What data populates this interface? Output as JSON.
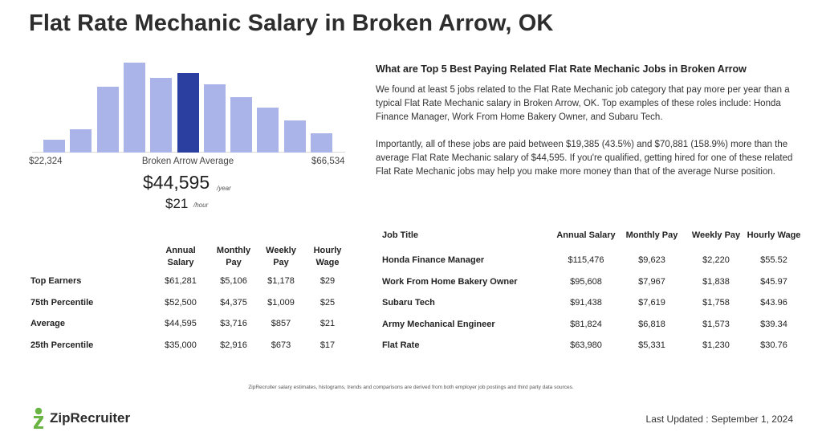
{
  "page": {
    "title": "Flat Rate Mechanic Salary in Broken Arrow, OK"
  },
  "colors": {
    "bar": "#aab4e8",
    "bar_highlight": "#2a3fa0",
    "logo_green": "#6ab443"
  },
  "histogram": {
    "min_label": "$22,324",
    "max_label": "$66,534",
    "avg_label": "Broken Arrow Average",
    "bars": [
      0.14,
      0.26,
      0.73,
      1.0,
      0.83,
      0.88,
      0.76,
      0.62,
      0.5,
      0.36,
      0.21
    ],
    "highlight_index": 5
  },
  "average": {
    "annual": "$44,595",
    "annual_unit": "/year",
    "hourly": "$21",
    "hourly_unit": "/hour"
  },
  "percentile_table": {
    "headers": [
      "",
      "Annual Salary",
      "Monthly Pay",
      "Weekly Pay",
      "Hourly Wage"
    ],
    "rows": [
      [
        "Top Earners",
        "$61,281",
        "$5,106",
        "$1,178",
        "$29"
      ],
      [
        "75th Percentile",
        "$52,500",
        "$4,375",
        "$1,009",
        "$25"
      ],
      [
        "Average",
        "$44,595",
        "$3,716",
        "$857",
        "$21"
      ],
      [
        "25th Percentile",
        "$35,000",
        "$2,916",
        "$673",
        "$17"
      ]
    ]
  },
  "related": {
    "heading": "What are Top 5 Best Paying Related Flat Rate Mechanic Jobs in Broken Arrow",
    "paragraph1": "We found at least 5 jobs related to the Flat Rate Mechanic job category that pay more per year than a typical Flat Rate Mechanic salary in Broken Arrow, OK. Top examples of these roles include: Honda Finance Manager, Work From Home Bakery Owner, and Subaru Tech.",
    "paragraph2": "Importantly, all of these jobs are paid between $19,385 (43.5%) and $70,881 (158.9%) more than the average Flat Rate Mechanic salary of $44,595. If you're qualified, getting hired for one of these related Flat Rate Mechanic jobs may help you make more money than that of the average Nurse position."
  },
  "jobs_table": {
    "headers": [
      "Job Title",
      "Annual Salary",
      "Monthly Pay",
      "Weekly Pay",
      "Hourly Wage"
    ],
    "rows": [
      [
        "Honda Finance Manager",
        "$115,476",
        "$9,623",
        "$2,220",
        "$55.52"
      ],
      [
        "Work From Home Bakery Owner",
        "$95,608",
        "$7,967",
        "$1,838",
        "$45.97"
      ],
      [
        "Subaru Tech",
        "$91,438",
        "$7,619",
        "$1,758",
        "$43.96"
      ],
      [
        "Army Mechanical Engineer",
        "$81,824",
        "$6,818",
        "$1,573",
        "$39.34"
      ],
      [
        "Flat Rate",
        "$63,980",
        "$5,331",
        "$1,230",
        "$30.76"
      ]
    ]
  },
  "footer": {
    "disclaimer": "ZipRecruiter salary estimates, histograms, trends and comparisons are derived from both employer job postings and third party data sources.",
    "logo_text": "ZipRecruiter",
    "last_updated": "Last Updated : September 1, 2024"
  }
}
